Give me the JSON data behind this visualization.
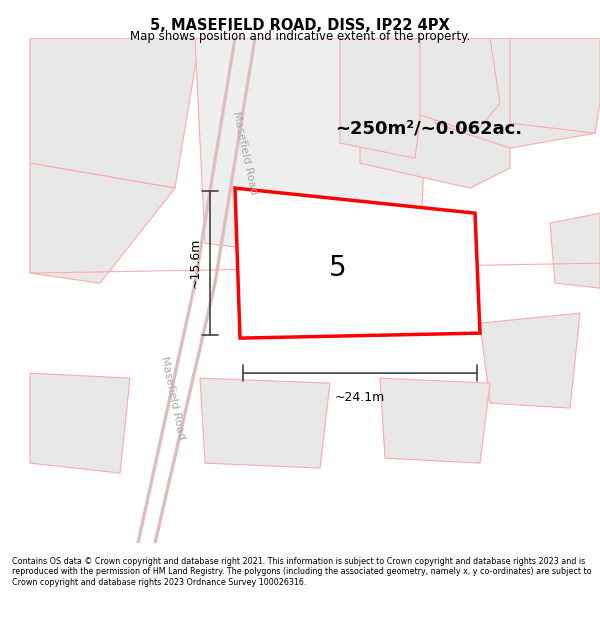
{
  "title": "5, MASEFIELD ROAD, DISS, IP22 4PX",
  "subtitle": "Map shows position and indicative extent of the property.",
  "footer": "Contains OS data © Crown copyright and database right 2021. This information is subject to Crown copyright and database rights 2023 and is reproduced with the permission of HM Land Registry. The polygons (including the associated geometry, namely x, y co-ordinates) are subject to Crown copyright and database rights 2023 Ordnance Survey 100026316.",
  "map_bg": "#ffffff",
  "plot_color": "#ff0000",
  "polygon_fill": "#e8e8e8",
  "polygon_edge": "#ffaaaa",
  "road_label": "Masefield Road",
  "area_text": "~250m²/~0.062ac.",
  "label_5": "5",
  "dim_width": "~24.1m",
  "dim_height": "~15.6m"
}
